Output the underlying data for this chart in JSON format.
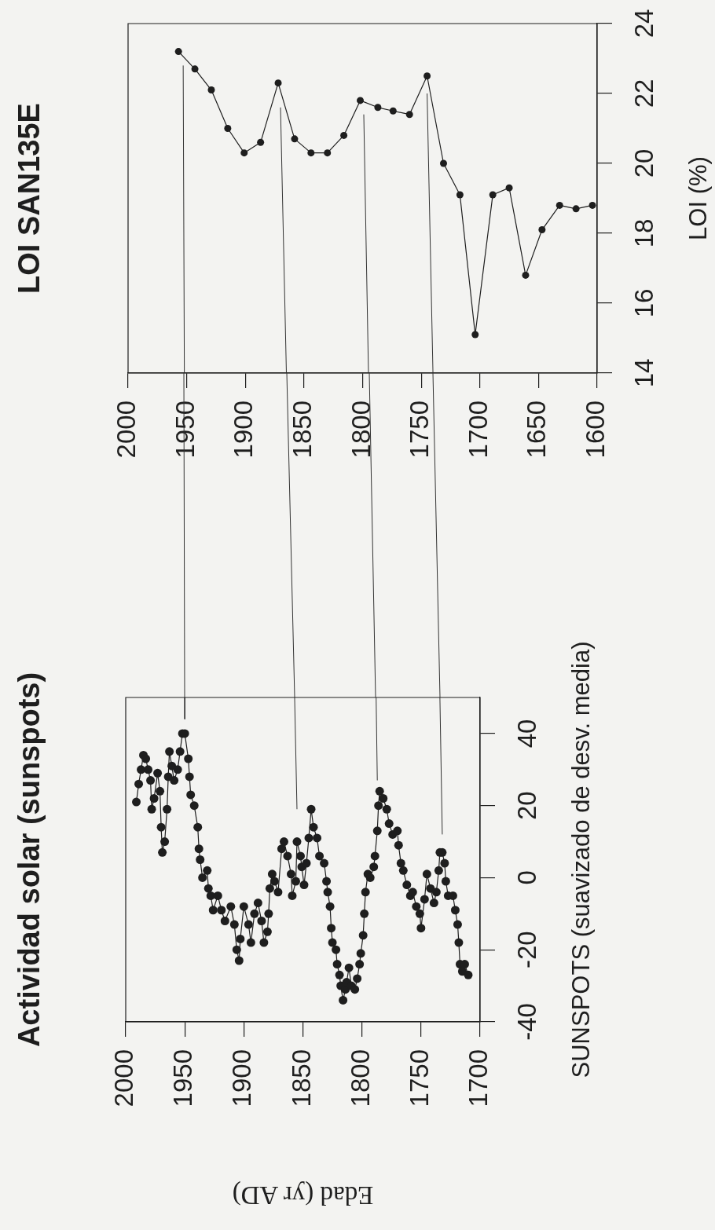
{
  "chart_data": [
    {
      "type": "line",
      "title": "LOI SAN135E",
      "ylabel": "LOI (%)",
      "marker": "circle",
      "x": [
        1957,
        1943,
        1929,
        1915,
        1901,
        1887,
        1872,
        1858,
        1844,
        1830,
        1816,
        1802,
        1787,
        1774,
        1760,
        1745,
        1731,
        1717,
        1704,
        1689,
        1675,
        1661,
        1647,
        1632,
        1618,
        1604
      ],
      "series": [
        {
          "color": "#1e1e1e",
          "values": [
            23.2,
            22.7,
            22.1,
            21.0,
            20.3,
            20.6,
            22.3,
            20.7,
            20.3,
            20.3,
            20.8,
            21.8,
            21.6,
            21.5,
            21.4,
            22.5,
            20.0,
            19.1,
            15.1,
            19.1,
            19.3,
            16.8,
            18.1,
            18.8,
            18.7,
            18.8
          ]
        },
        {
          "type": "line",
          "marker": "none",
          "color": "#333333",
          "x": [
            1953,
            1952
          ],
          "values": [
            22.8,
            14
          ]
        },
        {
          "type": "line",
          "marker": "none",
          "color": "#333333",
          "x": [
            1870,
            1865
          ],
          "values": [
            21.6,
            14
          ]
        },
        {
          "type": "line",
          "marker": "none",
          "color": "#333333",
          "x": [
            1799,
            1795
          ],
          "values": [
            21.4,
            14
          ]
        },
        {
          "type": "line",
          "marker": "none",
          "color": "#333333",
          "x": [
            1745,
            1740
          ],
          "values": [
            22.0,
            14
          ]
        }
      ],
      "xlim": [
        2000,
        1600
      ],
      "xticks": [
        2000,
        1950,
        1900,
        1850,
        1800,
        1750,
        1700,
        1650,
        1600
      ],
      "ylim": [
        14,
        24
      ],
      "yticks": [
        14,
        16,
        18,
        20,
        22,
        24
      ]
    },
    {
      "type": "line",
      "title": "Actividad solar (sunspots)",
      "xlabel": "Edad (yr AD)",
      "ylabel": "SUNSPOTS (suavizado de desv. media)",
      "marker": "circle",
      "x": [
        1991,
        1989,
        1987,
        1985,
        1983,
        1981,
        1979,
        1978,
        1976,
        1973,
        1971,
        1970,
        1969,
        1967,
        1965,
        1964,
        1963,
        1961,
        1959,
        1956,
        1954,
        1952,
        1950,
        1947,
        1946,
        1945,
        1942,
        1939,
        1938,
        1937,
        1935,
        1931,
        1930,
        1928,
        1926,
        1922,
        1919,
        1916,
        1911,
        1908,
        1906,
        1904,
        1903,
        1900,
        1896,
        1894,
        1891,
        1888,
        1885,
        1883,
        1880,
        1879,
        1878,
        1876,
        1874,
        1871,
        1868,
        1866,
        1863,
        1860,
        1859,
        1856,
        1855,
        1852,
        1851,
        1849,
        1847,
        1845,
        1843,
        1841,
        1838,
        1836,
        1832,
        1830,
        1829,
        1827,
        1826,
        1825,
        1822,
        1821,
        1819,
        1818,
        1816,
        1814,
        1813,
        1811,
        1809,
        1806,
        1804,
        1802,
        1801,
        1799,
        1798,
        1797,
        1795,
        1793,
        1790,
        1789,
        1787,
        1786,
        1785,
        1782,
        1779,
        1777,
        1774,
        1770,
        1769,
        1767,
        1765,
        1762,
        1759,
        1757,
        1754,
        1751,
        1750,
        1747,
        1745,
        1742,
        1739,
        1737,
        1735,
        1734,
        1732,
        1730,
        1729,
        1727,
        1723,
        1721,
        1719,
        1718,
        1717,
        1715,
        1713,
        1710
      ],
      "series": [
        {
          "color": "#1e1e1e",
          "values": [
            21,
            26,
            30,
            34,
            33,
            30,
            27,
            19,
            22,
            29,
            24,
            14,
            7,
            10,
            19,
            28,
            35,
            31,
            27,
            30,
            35,
            40,
            40,
            33,
            28,
            23,
            20,
            14,
            8,
            5,
            0,
            2,
            -3,
            -5,
            -9,
            -5,
            -9,
            -12,
            -8,
            -13,
            -20,
            -23,
            -17,
            -8,
            -13,
            -18,
            -10,
            -7,
            -12,
            -18,
            -15,
            -10,
            -3,
            1,
            -1,
            -4,
            8,
            10,
            6,
            1,
            -5,
            -1,
            10,
            6,
            3,
            -2,
            4,
            11,
            19,
            14,
            11,
            6,
            4,
            -1,
            -4,
            -8,
            -14,
            -18,
            -20,
            -24,
            -27,
            -30,
            -34,
            -31,
            -29,
            -25,
            -30,
            -31,
            -28,
            -24,
            -21,
            -16,
            -10,
            -4,
            1,
            0,
            3,
            6,
            13,
            20,
            24,
            22,
            19,
            15,
            12,
            13,
            9,
            4,
            2,
            -2,
            -5,
            -4,
            -8,
            -10,
            -14,
            -6,
            1,
            -3,
            -7,
            -4,
            2,
            7,
            7,
            4,
            -1,
            -5,
            -5,
            -9,
            -13,
            -18,
            -24,
            -26,
            -24,
            -27
          ]
        },
        {
          "type": "line",
          "marker": "none",
          "color": "#333333",
          "x": [
            1950,
            1950
          ],
          "values": [
            50,
            44
          ]
        },
        {
          "type": "line",
          "marker": "none",
          "color": "#333333",
          "x": [
            1857,
            1855
          ],
          "values": [
            50,
            19
          ]
        },
        {
          "type": "line",
          "marker": "none",
          "color": "#333333",
          "x": [
            1788,
            1787
          ],
          "values": [
            50,
            27
          ]
        },
        {
          "type": "line",
          "marker": "none",
          "color": "#333333",
          "x": [
            1734,
            1732
          ],
          "values": [
            50,
            12
          ]
        }
      ],
      "xlim": [
        2000,
        1700
      ],
      "xticks": [
        2000,
        1950,
        1900,
        1850,
        1800,
        1750,
        1700
      ],
      "ylim": [
        -40,
        50
      ],
      "yticks": [
        -40,
        -20,
        0,
        20,
        40
      ]
    }
  ]
}
